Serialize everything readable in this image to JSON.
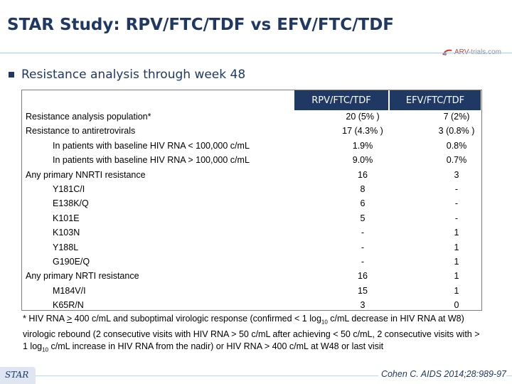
{
  "title": "STAR Study: RPV/FTC/TDF vs EFV/FTC/TDF",
  "logo": {
    "prefix": "ARV",
    "suffix": "-trials.com"
  },
  "subtitle": "Resistance analysis through week 48",
  "table": {
    "headers": [
      "RPV/FTC/TDF",
      "EFV/FTC/TDF"
    ],
    "rows": [
      {
        "label": "Resistance analysis population*",
        "rpv": "20 (5% )",
        "efv": "7 (2%)"
      },
      {
        "label": "Resistance to antiretrovirals",
        "rpv": "17 (4.3% )",
        "efv": "3 (0.8% )"
      },
      {
        "label": "In patients with baseline HIV RNA < 100,000 c/mL",
        "rpv": "1.9%",
        "efv": "0.8%"
      },
      {
        "label": "In patients with baseline HIV RNA > 100,000 c/mL",
        "rpv": "9.0%",
        "efv": "0.7%"
      },
      {
        "label": "Any primary NNRTI resistance",
        "rpv": "16",
        "efv": "3"
      },
      {
        "label": "Y181C/I",
        "rpv": "8",
        "efv": "-"
      },
      {
        "label": "E138K/Q",
        "rpv": "6",
        "efv": "-"
      },
      {
        "label": "K101E",
        "rpv": "5",
        "efv": "-"
      },
      {
        "label": "K103N",
        "rpv": "-",
        "efv": "1"
      },
      {
        "label": "Y188L",
        "rpv": "-",
        "efv": "1"
      },
      {
        "label": "G190E/Q",
        "rpv": "-",
        "efv": "1"
      },
      {
        "label": "Any primary NRTI resistance",
        "rpv": "16",
        "efv": "1"
      },
      {
        "label": "M184V/I",
        "rpv": "15",
        "efv": "1"
      },
      {
        "label": "K65R/N",
        "rpv": "3",
        "efv": "0"
      }
    ]
  },
  "footnote": {
    "part1": "* HIV RNA ",
    "ge": ">",
    "part2": " 400 c/mL and suboptimal virologic response  (confirmed < 1 log",
    "sub1": "10",
    "part3": " c/mL decrease in HIV RNA at W8) virologic rebound (2 consecutive visits with HIV RNA > 50 c/mL after achieving < 50 c/mL, 2 consecutive visits with > 1 log",
    "sub2": "10",
    "part4": " c/mL increase in HIV RNA from the nadir) or HIV RNA > 400 c/mL at W48 or last visit"
  },
  "footer": {
    "tag": "STAR",
    "citation": "Cohen C. AIDS 2014;28:989-97"
  },
  "colors": {
    "navy": "#1f3864",
    "logo_red": "#d9382e"
  }
}
